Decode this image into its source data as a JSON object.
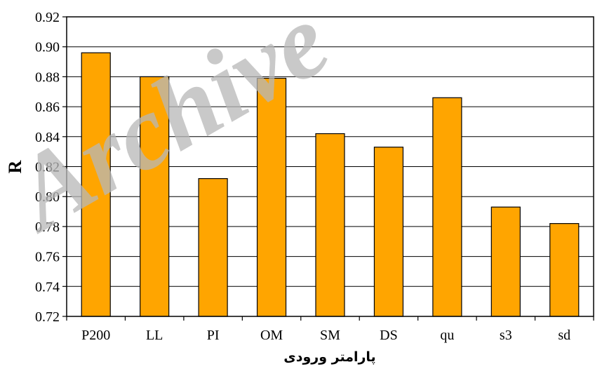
{
  "chart_data": {
    "type": "bar",
    "categories": [
      "P200",
      "LL",
      "PI",
      "OM",
      "SM",
      "DS",
      "qu",
      "s3",
      "sd"
    ],
    "values": [
      0.896,
      0.88,
      0.812,
      0.879,
      0.842,
      0.833,
      0.866,
      0.793,
      0.782
    ],
    "title": "",
    "xlabel": "پارامتر ورودی",
    "ylabel": "R",
    "ylim": [
      0.72,
      0.92
    ],
    "yticks": [
      "0.72",
      "0.74",
      "0.76",
      "0.78",
      "0.80",
      "0.82",
      "0.84",
      "0.86",
      "0.88",
      "0.90",
      "0.92"
    ],
    "grid": "horizontal",
    "bar_color": "#FFA500",
    "bar_edge_color": "#000000"
  },
  "watermark": "Archive"
}
